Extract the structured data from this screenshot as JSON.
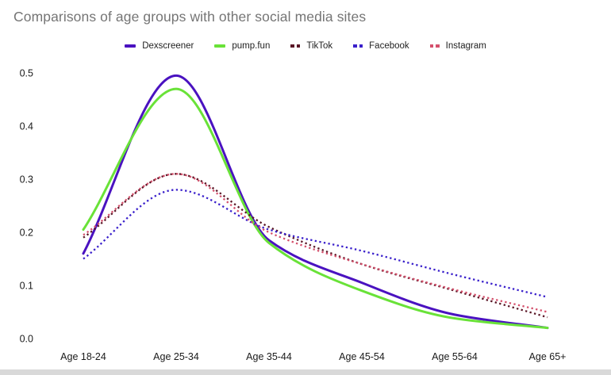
{
  "title": "Comparisons of age groups with other social media sites",
  "colors": {
    "background": "#ffffff",
    "title_text": "#757575",
    "axis_text": "#1a1a1a",
    "bottom_bar": "#d9d9d9"
  },
  "chart_data": {
    "type": "line",
    "title": "Comparisons of age groups with other social media sites",
    "categories": [
      "Age 18-24",
      "Age 25-34",
      "Age 35-44",
      "Age 45-54",
      "Age 55-64",
      "Age 65+"
    ],
    "y_tick_labels": [
      "0.0",
      "0.1",
      "0.2",
      "0.3",
      "0.4",
      "0.5"
    ],
    "y_ticks": [
      0.0,
      0.1,
      0.2,
      0.3,
      0.4,
      0.5
    ],
    "ylim": [
      0.0,
      0.5
    ],
    "xlabel": "",
    "ylabel": "",
    "grid": false,
    "legend_position": "top-center",
    "series": [
      {
        "name": "Dexscreener",
        "color": "#4A12C0",
        "style": "solid",
        "values": [
          0.16,
          0.495,
          0.185,
          0.105,
          0.045,
          0.02
        ]
      },
      {
        "name": "pump.fun",
        "color": "#69E238",
        "style": "solid",
        "values": [
          0.205,
          0.47,
          0.18,
          0.09,
          0.038,
          0.02
        ]
      },
      {
        "name": "TikTok",
        "color": "#5A1626",
        "style": "dotted",
        "values": [
          0.19,
          0.31,
          0.21,
          0.14,
          0.09,
          0.04
        ]
      },
      {
        "name": "Facebook",
        "color": "#3A20CB",
        "style": "dotted",
        "values": [
          0.15,
          0.28,
          0.205,
          0.165,
          0.12,
          0.078
        ]
      },
      {
        "name": "Instagram",
        "color": "#D4506C",
        "style": "dotted",
        "values": [
          0.195,
          0.31,
          0.2,
          0.14,
          0.092,
          0.05
        ]
      }
    ]
  }
}
